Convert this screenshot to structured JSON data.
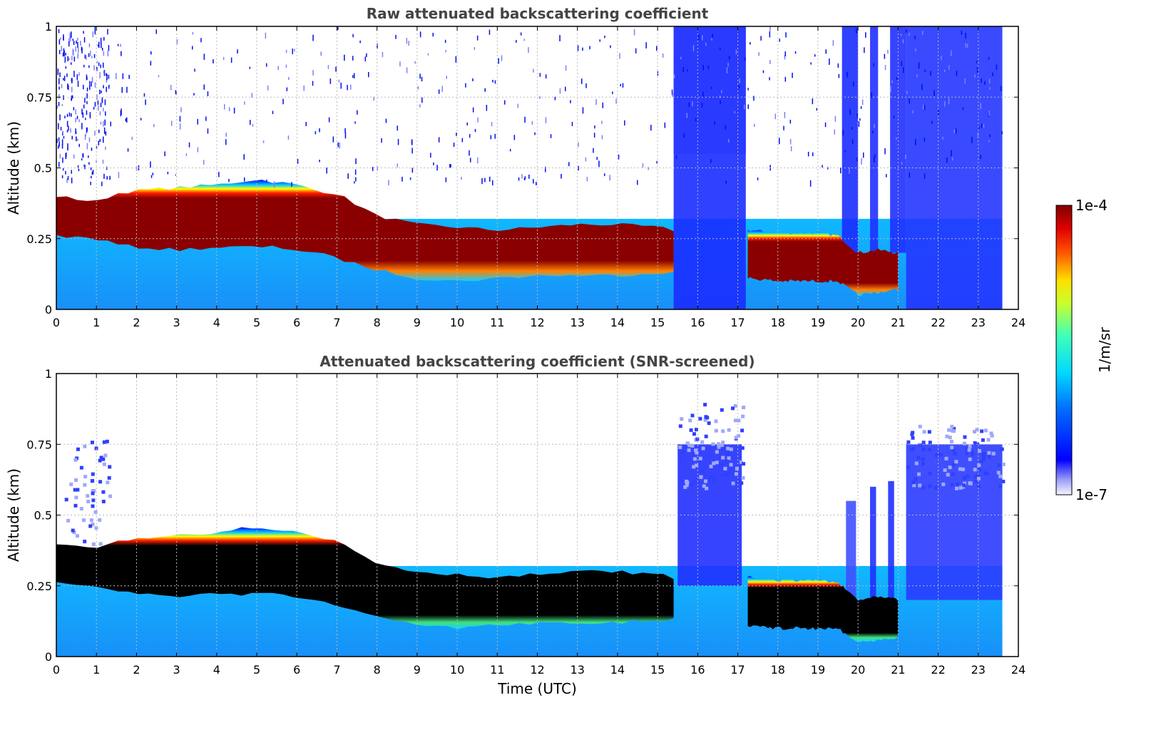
{
  "chart_data": [
    {
      "type": "heatmap",
      "title": "Raw attenuated backscattering coefficient",
      "xlabel": "",
      "ylabel": "Altitude (km)",
      "xlim": [
        0,
        24
      ],
      "ylim": [
        0,
        1
      ],
      "xticks": [
        "0",
        "1",
        "2",
        "3",
        "4",
        "5",
        "6",
        "7",
        "8",
        "9",
        "10",
        "11",
        "12",
        "13",
        "14",
        "15",
        "16",
        "17",
        "18",
        "19",
        "20",
        "21",
        "22",
        "23",
        "24"
      ],
      "yticks": [
        "0",
        "0.25",
        "0.5",
        "0.75",
        "1"
      ],
      "grid": true,
      "data_end_hour": 23.6,
      "layer_profile": {
        "time_utc": [
          0,
          1,
          1.5,
          2,
          3,
          4,
          5,
          5.5,
          6,
          6.5,
          7,
          7.5,
          8,
          9,
          10,
          11,
          12,
          13,
          14,
          15,
          15.4,
          17.3,
          18,
          19,
          19.5,
          20,
          20.5,
          21
        ],
        "top_km": [
          0.4,
          0.38,
          0.41,
          0.42,
          0.43,
          0.44,
          0.46,
          0.45,
          0.44,
          0.42,
          0.41,
          0.37,
          0.33,
          0.3,
          0.29,
          0.28,
          0.29,
          0.3,
          0.3,
          0.29,
          0.28,
          0.28,
          0.27,
          0.27,
          0.26,
          0.2,
          0.21,
          0.2
        ],
        "base_km": [
          0.26,
          0.25,
          0.23,
          0.22,
          0.21,
          0.22,
          0.22,
          0.22,
          0.21,
          0.2,
          0.18,
          0.16,
          0.14,
          0.11,
          0.1,
          0.11,
          0.12,
          0.12,
          0.12,
          0.13,
          0.13,
          0.11,
          0.1,
          0.1,
          0.1,
          0.05,
          0.06,
          0.07
        ]
      }
    },
    {
      "type": "heatmap",
      "title": "Attenuated backscattering coefficient (SNR-screened)",
      "xlabel": "Time (UTC)",
      "ylabel": "Altitude (km)",
      "xlim": [
        0,
        24
      ],
      "ylim": [
        0,
        1
      ],
      "xticks": [
        "0",
        "1",
        "2",
        "3",
        "4",
        "5",
        "6",
        "7",
        "8",
        "9",
        "10",
        "11",
        "12",
        "13",
        "14",
        "15",
        "16",
        "17",
        "18",
        "19",
        "20",
        "21",
        "22",
        "23",
        "24"
      ],
      "yticks": [
        "0",
        "0.25",
        "0.5",
        "0.75",
        "1"
      ],
      "grid": true,
      "data_end_hour": 23.6,
      "saturated_color": "#000000"
    }
  ],
  "colorbar": {
    "label": "1/m/sr",
    "max_label": "1e-4",
    "min_label": "1e-7",
    "scale": "log",
    "colormap": "jet",
    "colors": [
      "#eeeefc",
      "#0000ff",
      "#00c8ff",
      "#40ffc0",
      "#ffff00",
      "#ff6600",
      "#ff0000",
      "#800000"
    ]
  }
}
